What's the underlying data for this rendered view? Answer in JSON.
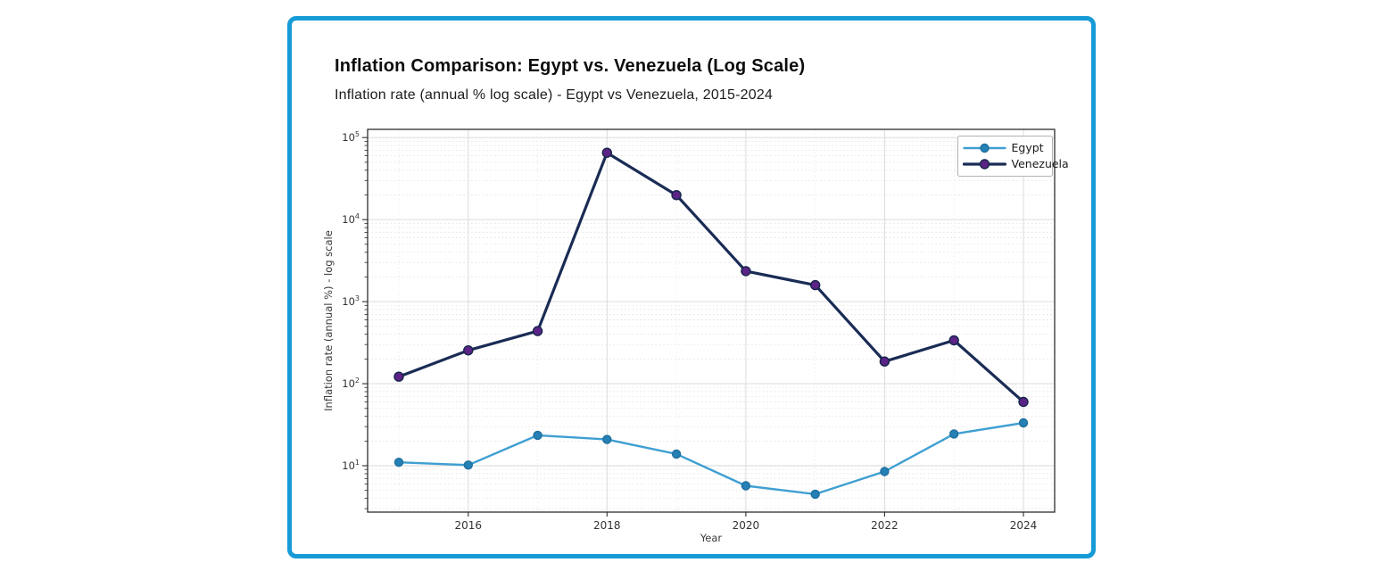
{
  "card": {
    "border_color": "#179bd7",
    "background": "#ffffff"
  },
  "chart_data": {
    "type": "line",
    "title": "Inflation Comparison: Egypt vs. Venezuela (Log Scale)",
    "subtitle": "Inflation rate (annual % log scale) - Egypt vs Venezuela, 2015-2024",
    "xlabel": "Year",
    "ylabel": "Inflation rate (annual %) - log scale",
    "x": [
      2015,
      2016,
      2017,
      2018,
      2019,
      2020,
      2021,
      2022,
      2023,
      2024
    ],
    "series": [
      {
        "name": "Egypt",
        "line_color": "#3f9fd2",
        "marker_color": "#2581b5",
        "marker_edge": "#1f6f9e",
        "line_width": 2.4,
        "marker_radius": 4.5,
        "values": [
          11.0,
          10.2,
          23.5,
          20.9,
          13.9,
          5.7,
          4.5,
          8.5,
          24.4,
          33.3
        ]
      },
      {
        "name": "Venezuela",
        "line_color": "#1a2c55",
        "marker_color": "#5b2386",
        "marker_edge": "#16254a",
        "line_width": 3.2,
        "marker_radius": 5,
        "values": [
          121.7,
          254.9,
          438.1,
          65374.1,
          19906.0,
          2355.1,
          1588.5,
          186.5,
          337.5,
          60.0
        ]
      }
    ],
    "x_ticks": [
      2016,
      2018,
      2020,
      2022,
      2024
    ],
    "y_tick_exponents": [
      1,
      2,
      3,
      4,
      5
    ],
    "y_tick_base": "10",
    "axis": {
      "y_scale": "log",
      "xlim": [
        2014.55,
        2024.45
      ],
      "ylim_log": [
        0.435,
        5.1
      ]
    },
    "legend": {
      "position": "upper right",
      "entries": [
        "Egypt",
        "Venezuela"
      ]
    },
    "grid": {
      "major": true,
      "minor": true,
      "minor_style": "dotted"
    }
  }
}
